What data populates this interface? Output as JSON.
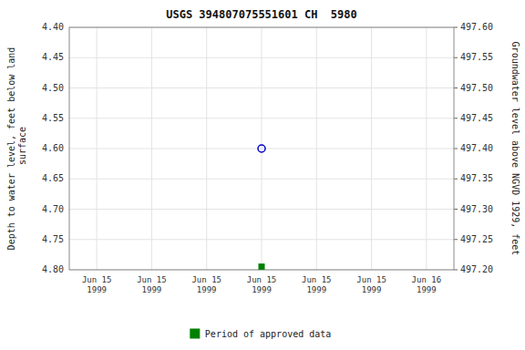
{
  "chart_data": {
    "type": "scatter",
    "title": "USGS 394807075551601 CH  5980",
    "y_label": "Depth to water level, feet below land\n surface",
    "y2_label": "Groundwater level above NGVD 1929, feet",
    "categories": [
      "Jun 15\n1999",
      "Jun 15\n1999",
      "Jun 15\n1999",
      "Jun 15\n1999",
      "Jun 15\n1999",
      "Jun 15\n1999",
      "Jun 16\n1999"
    ],
    "series": [
      {
        "color": "#0000cc",
        "marker": "open-circle",
        "values": [
          null,
          null,
          null,
          4.6,
          null,
          null,
          null
        ]
      },
      {
        "name": "Period of approved data",
        "color": "#008000",
        "marker": "square",
        "values": [
          null,
          null,
          null,
          4.795,
          null,
          null,
          null
        ]
      }
    ],
    "ylim": [
      4.8,
      4.4
    ],
    "yticks": [
      {
        "value": 4.4,
        "label": "4.40"
      },
      4.45,
      {
        "value": 4.5,
        "label": "4.50"
      },
      4.55,
      {
        "value": 4.6,
        "label": "4.60"
      },
      4.65,
      {
        "value": 4.7,
        "label": "4.70"
      },
      4.75,
      {
        "value": 4.8,
        "label": "4.80"
      }
    ],
    "y2lim": [
      497.2,
      497.6
    ],
    "y2ticks": [
      {
        "value": 497.2,
        "label": "497.20"
      },
      497.25,
      {
        "value": 497.3,
        "label": "497.30"
      },
      497.35,
      {
        "value": 497.4,
        "label": "497.40"
      },
      497.45,
      {
        "value": 497.5,
        "label": "497.50"
      },
      497.55,
      {
        "value": 497.6,
        "label": "497.60"
      }
    ],
    "grid": true,
    "legend": "bottom"
  }
}
